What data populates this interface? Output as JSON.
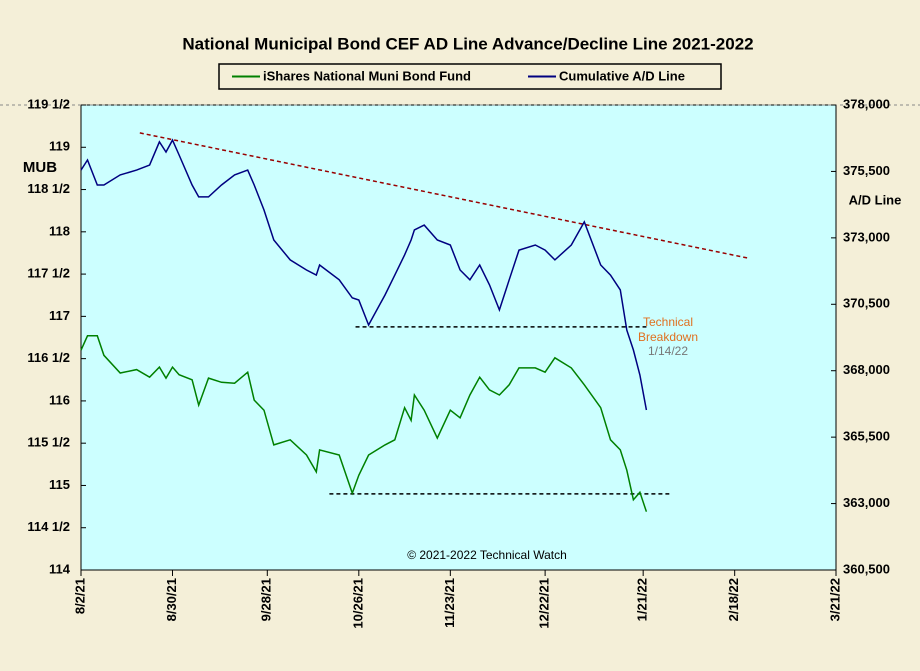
{
  "chart_data": {
    "type": "line",
    "title": "National Municipal Bond CEF AD Line Advance/Decline  Line 2021-2022",
    "y_label": "MUB",
    "y2_label": "A/D Line",
    "credit": "© 2021-2022  Technical Watch",
    "annotations": [
      "Technical",
      "Breakdown",
      "1/14/22"
    ],
    "xlim": [
      "2021-08-02",
      "2022-03-21"
    ],
    "xticks": [
      {
        "value": "2021-08-02",
        "label": "8/2/21"
      },
      {
        "value": "2021-08-30",
        "label": "8/30/21"
      },
      {
        "value": "2021-09-28",
        "label": "9/28/21"
      },
      {
        "value": "2021-10-26",
        "label": "10/26/21"
      },
      {
        "value": "2021-11-23",
        "label": "11/23/21"
      },
      {
        "value": "2021-12-22",
        "label": "12/22/21"
      },
      {
        "value": "2022-01-21",
        "label": "1/21/22"
      },
      {
        "value": "2022-02-18",
        "label": "2/18/22"
      },
      {
        "value": "2022-03-21",
        "label": "3/21/22"
      }
    ],
    "ylim": [
      114,
      119.5
    ],
    "yticks": [
      114,
      {
        "value": 114.5,
        "label": "114 1/2"
      },
      115,
      {
        "value": 115.5,
        "label": "115 1/2"
      },
      116,
      {
        "value": 116.5,
        "label": "116 1/2"
      },
      117,
      {
        "value": 117.5,
        "label": "117 1/2"
      },
      118,
      {
        "value": 118.5,
        "label": "118 1/2"
      },
      119,
      {
        "value": 119.5,
        "label": "119 1/2"
      }
    ],
    "y2lim": [
      360500,
      378000
    ],
    "y2ticks": [
      {
        "value": 360500,
        "label": "360,500"
      },
      {
        "value": 363000,
        "label": "363,000"
      },
      {
        "value": 365500,
        "label": "365,500"
      },
      {
        "value": 368000,
        "label": "368,000"
      },
      {
        "value": 370500,
        "label": "370,500"
      },
      {
        "value": 373000,
        "label": "373,000"
      },
      {
        "value": 375500,
        "label": "375,500"
      },
      {
        "value": 378000,
        "label": "378,000"
      }
    ],
    "x": [
      "2021-08-02",
      "2021-08-04",
      "2021-08-07",
      "2021-08-09",
      "2021-08-14",
      "2021-08-19",
      "2021-08-23",
      "2021-08-26",
      "2021-08-28",
      "2021-08-30",
      "2021-09-01",
      "2021-09-05",
      "2021-09-07",
      "2021-09-10",
      "2021-09-14",
      "2021-09-18",
      "2021-09-22",
      "2021-09-24",
      "2021-09-27",
      "2021-09-30",
      "2021-10-05",
      "2021-10-10",
      "2021-10-13",
      "2021-10-14",
      "2021-10-20",
      "2021-10-24",
      "2021-10-26",
      "2021-10-29",
      "2021-11-03",
      "2021-11-06",
      "2021-11-09",
      "2021-11-11",
      "2021-11-12",
      "2021-11-15",
      "2021-11-19",
      "2021-11-23",
      "2021-11-26",
      "2021-11-29",
      "2021-12-02",
      "2021-12-05",
      "2021-12-08",
      "2021-12-11",
      "2021-12-14",
      "2021-12-19",
      "2021-12-22",
      "2021-12-25",
      "2021-12-30",
      "2022-01-03",
      "2022-01-08",
      "2022-01-11",
      "2022-01-14",
      "2022-01-16",
      "2022-01-18",
      "2022-01-20",
      "2022-01-22"
    ],
    "series": [
      {
        "name": "iShares National Muni Bond Fund",
        "color": "#008000",
        "axis": "y",
        "values": [
          116.6,
          116.77,
          116.77,
          116.54,
          116.33,
          116.37,
          116.28,
          116.4,
          116.27,
          116.4,
          116.31,
          116.25,
          115.95,
          116.27,
          116.22,
          116.21,
          116.34,
          116.01,
          115.89,
          115.48,
          115.54,
          115.36,
          115.16,
          115.42,
          115.36,
          114.91,
          115.12,
          115.36,
          115.48,
          115.54,
          115.92,
          115.77,
          116.07,
          115.89,
          115.56,
          115.89,
          115.8,
          116.07,
          116.28,
          116.13,
          116.07,
          116.19,
          116.39,
          116.39,
          116.34,
          116.51,
          116.39,
          116.19,
          115.92,
          115.54,
          115.42,
          115.18,
          114.83,
          114.92,
          114.69
        ]
      },
      {
        "name": "Cumulative A/D Line",
        "color": "#000080",
        "axis": "y2",
        "values": [
          375550,
          375930,
          374990,
          374990,
          375370,
          375550,
          375740,
          376610,
          376230,
          376680,
          376120,
          374990,
          374540,
          374540,
          374990,
          375370,
          375550,
          374990,
          374050,
          372920,
          372170,
          371790,
          371600,
          371980,
          371420,
          370740,
          370660,
          369720,
          370850,
          371600,
          372360,
          372920,
          373300,
          373480,
          372920,
          372730,
          371790,
          371420,
          371980,
          371230,
          370290,
          371420,
          372540,
          372730,
          372540,
          372170,
          372730,
          373600,
          371980,
          371600,
          371040,
          369530,
          368780,
          367840,
          366520
        ]
      }
    ],
    "reference_lines": [
      {
        "axis": "y2",
        "x": [
          "2021-08-20",
          "2022-02-22"
        ],
        "y": [
          376950,
          372240
        ],
        "color": "#990000"
      },
      {
        "axis": "y2",
        "x": [
          "2021-10-25",
          "2022-01-22"
        ],
        "y": [
          369650,
          369650
        ],
        "color": "#000000"
      },
      {
        "axis": "y",
        "x": [
          "2021-10-17",
          "2022-01-29"
        ],
        "y": [
          114.9,
          114.9
        ],
        "color": "#000000"
      }
    ]
  }
}
